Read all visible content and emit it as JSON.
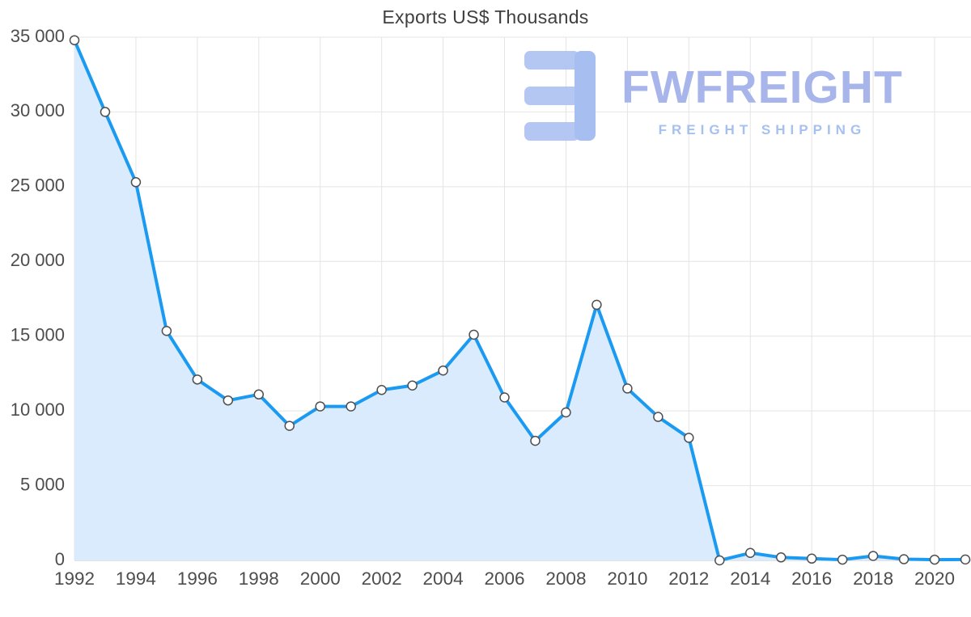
{
  "title": "Exports US$ Thousands",
  "watermark": {
    "brand": "FWFREIGHT",
    "tagline": "FREIGHT SHIPPING",
    "brand_color": "#a3b2e9",
    "logo_color_bars": "#b0c4f2",
    "logo_color_stem": "#a3bbf0"
  },
  "chart_data": {
    "type": "area",
    "title": "Exports US$ Thousands",
    "x": [
      1992,
      1993,
      1994,
      1995,
      1996,
      1997,
      1998,
      1999,
      2000,
      2001,
      2002,
      2003,
      2004,
      2005,
      2006,
      2007,
      2008,
      2009,
      2010,
      2011,
      2012,
      2013,
      2014,
      2015,
      2016,
      2017,
      2018,
      2019,
      2020,
      2021
    ],
    "values": [
      34800,
      30000,
      25300,
      15350,
      12100,
      10700,
      11100,
      9000,
      10300,
      10300,
      11400,
      11700,
      12700,
      15100,
      10900,
      8000,
      9900,
      17100,
      11500,
      9600,
      8200,
      0,
      500,
      200,
      120,
      50,
      300,
      80,
      50,
      60
    ],
    "x_tick_labels": [
      "1992",
      "1994",
      "1996",
      "1998",
      "2000",
      "2002",
      "2004",
      "2006",
      "2008",
      "2010",
      "2012",
      "2014",
      "2016",
      "2018",
      "2020"
    ],
    "y_ticks": [
      {
        "value": 0,
        "label": "0"
      },
      {
        "value": 5000,
        "label": "5 000"
      },
      {
        "value": 10000,
        "label": "10 000"
      },
      {
        "value": 15000,
        "label": "15 000"
      },
      {
        "value": 20000,
        "label": "20 000"
      },
      {
        "value": 25000,
        "label": "25 000"
      },
      {
        "value": 30000,
        "label": "30 000"
      },
      {
        "value": 35000,
        "label": "35 000"
      }
    ],
    "ylim": [
      0,
      35000
    ],
    "xlabel": "",
    "ylabel": "",
    "grid": true,
    "legend": false,
    "colors": {
      "line": "#1b9af2",
      "fill": "#d9ebfc",
      "marker_fill": "#ffffff",
      "marker_stroke": "#4f4f4f",
      "grid": "#e4e4e4",
      "axis": "#c6c6c6",
      "tick_text": "#4d4d4d"
    }
  }
}
